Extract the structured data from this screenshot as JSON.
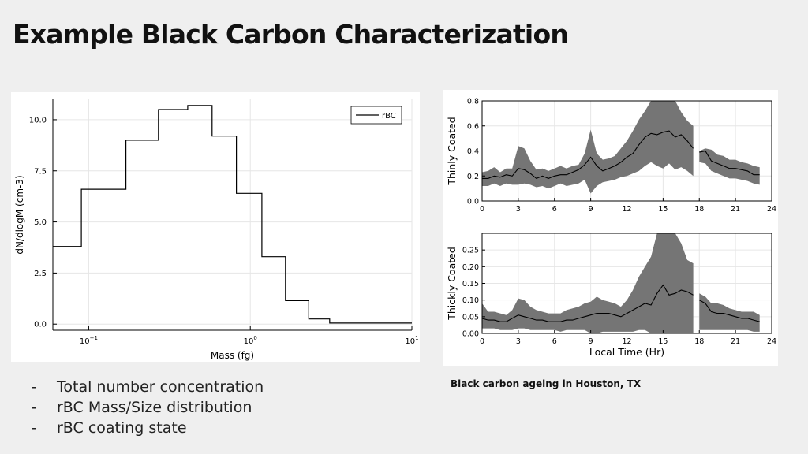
{
  "slide": {
    "title": "Example Black Carbon Characterization",
    "bullets": [
      "Total number concentration",
      "rBC Mass/Size distribution",
      "rBC coating state"
    ],
    "caption": "Black carbon ageing in Houston, TX"
  },
  "chart_data": [
    {
      "type": "line",
      "subtype": "step-histogram",
      "title": "",
      "xlabel": "Mass (fg)",
      "ylabel": "dN/dlogM (cm-3)",
      "xscale": "log",
      "xlim": [
        0.06,
        10
      ],
      "ylim": [
        -0.3,
        11
      ],
      "xticks": [
        0.1,
        1,
        10
      ],
      "xtick_labels": [
        {
          "base": "10",
          "exp": "−1"
        },
        {
          "base": "10",
          "exp": "0"
        },
        {
          "base": "10",
          "exp": "1"
        }
      ],
      "yticks": [
        0,
        2.5,
        5,
        7.5,
        10
      ],
      "ytick_labels": [
        "0.0",
        "2.5",
        "5.0",
        "7.5",
        "10.0"
      ],
      "grid": true,
      "legend": {
        "position": "top-right",
        "entries": [
          "rBC"
        ]
      },
      "series": [
        {
          "name": "rBC",
          "bin_edges": [
            0.06,
            0.09,
            0.17,
            0.27,
            0.41,
            0.58,
            0.82,
            1.18,
            1.65,
            2.3,
            3.1,
            10
          ],
          "values": [
            3.8,
            6.6,
            9.0,
            10.5,
            10.7,
            9.2,
            6.4,
            3.3,
            1.15,
            0.25,
            0.05
          ]
        }
      ]
    },
    {
      "type": "area",
      "subtype": "line-with-range-band",
      "ylabel": "Thinly Coated",
      "xlabel": "",
      "xlim": [
        0,
        24
      ],
      "ylim": [
        0,
        0.8
      ],
      "xticks": [
        0,
        3,
        6,
        9,
        12,
        15,
        18,
        21,
        24
      ],
      "yticks": [
        0.0,
        0.2,
        0.4,
        0.6,
        0.8
      ],
      "ytick_labels": [
        "0.0",
        "0.2",
        "0.4",
        "0.6",
        "0.8"
      ],
      "grid": true,
      "series": [
        {
          "segments": [
            {
              "x": [
                0,
                0.5,
                1,
                1.5,
                2,
                2.5,
                3,
                3.5,
                4,
                4.5,
                5,
                5.5,
                6,
                6.5,
                7,
                7.5,
                8,
                8.5,
                9,
                9.5,
                10,
                10.5,
                11,
                11.5,
                12,
                12.5,
                13,
                13.5,
                14,
                14.5,
                15,
                15.5,
                16,
                16.5,
                17,
                17.5
              ],
              "median": [
                0.18,
                0.18,
                0.2,
                0.19,
                0.21,
                0.2,
                0.26,
                0.25,
                0.22,
                0.18,
                0.2,
                0.18,
                0.2,
                0.21,
                0.21,
                0.23,
                0.25,
                0.29,
                0.35,
                0.28,
                0.24,
                0.26,
                0.28,
                0.31,
                0.35,
                0.38,
                0.45,
                0.51,
                0.54,
                0.53,
                0.55,
                0.56,
                0.51,
                0.53,
                0.48,
                0.42
              ],
              "lower": [
                0.12,
                0.12,
                0.14,
                0.12,
                0.14,
                0.13,
                0.13,
                0.14,
                0.13,
                0.11,
                0.12,
                0.1,
                0.12,
                0.14,
                0.12,
                0.13,
                0.14,
                0.17,
                0.06,
                0.12,
                0.15,
                0.16,
                0.17,
                0.19,
                0.2,
                0.22,
                0.24,
                0.28,
                0.31,
                0.28,
                0.26,
                0.3,
                0.25,
                0.27,
                0.24,
                0.2
              ],
              "upper": [
                0.23,
                0.24,
                0.27,
                0.23,
                0.26,
                0.26,
                0.44,
                0.42,
                0.32,
                0.25,
                0.26,
                0.24,
                0.26,
                0.28,
                0.26,
                0.28,
                0.29,
                0.38,
                0.57,
                0.38,
                0.33,
                0.34,
                0.36,
                0.42,
                0.48,
                0.56,
                0.65,
                0.72,
                0.8,
                0.8,
                0.8,
                0.8,
                0.8,
                0.71,
                0.64,
                0.6
              ]
            },
            {
              "x": [
                18,
                18.5,
                19,
                19.5,
                20,
                20.5,
                21,
                21.5,
                22,
                22.5,
                23
              ],
              "median": [
                0.39,
                0.4,
                0.32,
                0.3,
                0.28,
                0.26,
                0.26,
                0.25,
                0.24,
                0.21,
                0.21
              ],
              "lower": [
                0.31,
                0.3,
                0.24,
                0.22,
                0.2,
                0.18,
                0.18,
                0.17,
                0.16,
                0.14,
                0.13
              ],
              "upper": [
                0.4,
                0.42,
                0.41,
                0.37,
                0.36,
                0.33,
                0.33,
                0.31,
                0.3,
                0.28,
                0.27
              ]
            }
          ]
        }
      ]
    },
    {
      "type": "area",
      "subtype": "line-with-range-band",
      "ylabel": "Thickly Coated",
      "xlabel": "Local Time (Hr)",
      "xlim": [
        0,
        24
      ],
      "ylim": [
        0,
        0.3
      ],
      "xticks": [
        0,
        3,
        6,
        9,
        12,
        15,
        18,
        21,
        24
      ],
      "yticks": [
        0.0,
        0.05,
        0.1,
        0.15,
        0.2,
        0.25
      ],
      "ytick_labels": [
        "0.00",
        "0.05",
        "0.10",
        "0.15",
        "0.20",
        "0.25"
      ],
      "grid": true,
      "series": [
        {
          "segments": [
            {
              "x": [
                0,
                0.5,
                1,
                1.5,
                2,
                2.5,
                3,
                3.5,
                4,
                4.5,
                5,
                5.5,
                6,
                6.5,
                7,
                7.5,
                8,
                8.5,
                9,
                9.5,
                10,
                10.5,
                11,
                11.5,
                12,
                12.5,
                13,
                13.5,
                14,
                14.5,
                15,
                15.5,
                16,
                16.5,
                17,
                17.5
              ],
              "median": [
                0.045,
                0.04,
                0.04,
                0.035,
                0.035,
                0.045,
                0.055,
                0.05,
                0.045,
                0.04,
                0.04,
                0.035,
                0.035,
                0.035,
                0.04,
                0.04,
                0.045,
                0.05,
                0.055,
                0.06,
                0.06,
                0.06,
                0.055,
                0.05,
                0.06,
                0.07,
                0.08,
                0.09,
                0.085,
                0.12,
                0.145,
                0.115,
                0.12,
                0.13,
                0.125,
                0.115
              ],
              "lower": [
                0.015,
                0.015,
                0.015,
                0.01,
                0.01,
                0.01,
                0.015,
                0.015,
                0.01,
                0.01,
                0.01,
                0.01,
                0.01,
                0.005,
                0.01,
                0.01,
                0.01,
                0.01,
                0.0,
                0.0,
                0.005,
                0.005,
                0.005,
                0.005,
                0.005,
                0.005,
                0.01,
                0.01,
                0.0,
                0.0,
                0.0,
                0.0,
                0.0,
                0.0,
                0.0,
                0.0
              ],
              "upper": [
                0.09,
                0.065,
                0.065,
                0.06,
                0.055,
                0.07,
                0.105,
                0.1,
                0.08,
                0.07,
                0.065,
                0.06,
                0.06,
                0.06,
                0.07,
                0.075,
                0.08,
                0.09,
                0.095,
                0.11,
                0.1,
                0.095,
                0.09,
                0.08,
                0.1,
                0.13,
                0.17,
                0.2,
                0.23,
                0.3,
                0.3,
                0.3,
                0.3,
                0.27,
                0.22,
                0.21
              ]
            },
            {
              "x": [
                18,
                18.5,
                19,
                19.5,
                20,
                20.5,
                21,
                21.5,
                22,
                22.5,
                23
              ],
              "median": [
                0.1,
                0.09,
                0.065,
                0.06,
                0.06,
                0.055,
                0.05,
                0.045,
                0.045,
                0.04,
                0.035
              ],
              "lower": [
                0.01,
                0.01,
                0.01,
                0.01,
                0.01,
                0.01,
                0.01,
                0.01,
                0.01,
                0.005,
                0.005
              ],
              "upper": [
                0.12,
                0.11,
                0.09,
                0.09,
                0.085,
                0.075,
                0.07,
                0.065,
                0.065,
                0.065,
                0.055
              ]
            }
          ]
        }
      ]
    }
  ]
}
